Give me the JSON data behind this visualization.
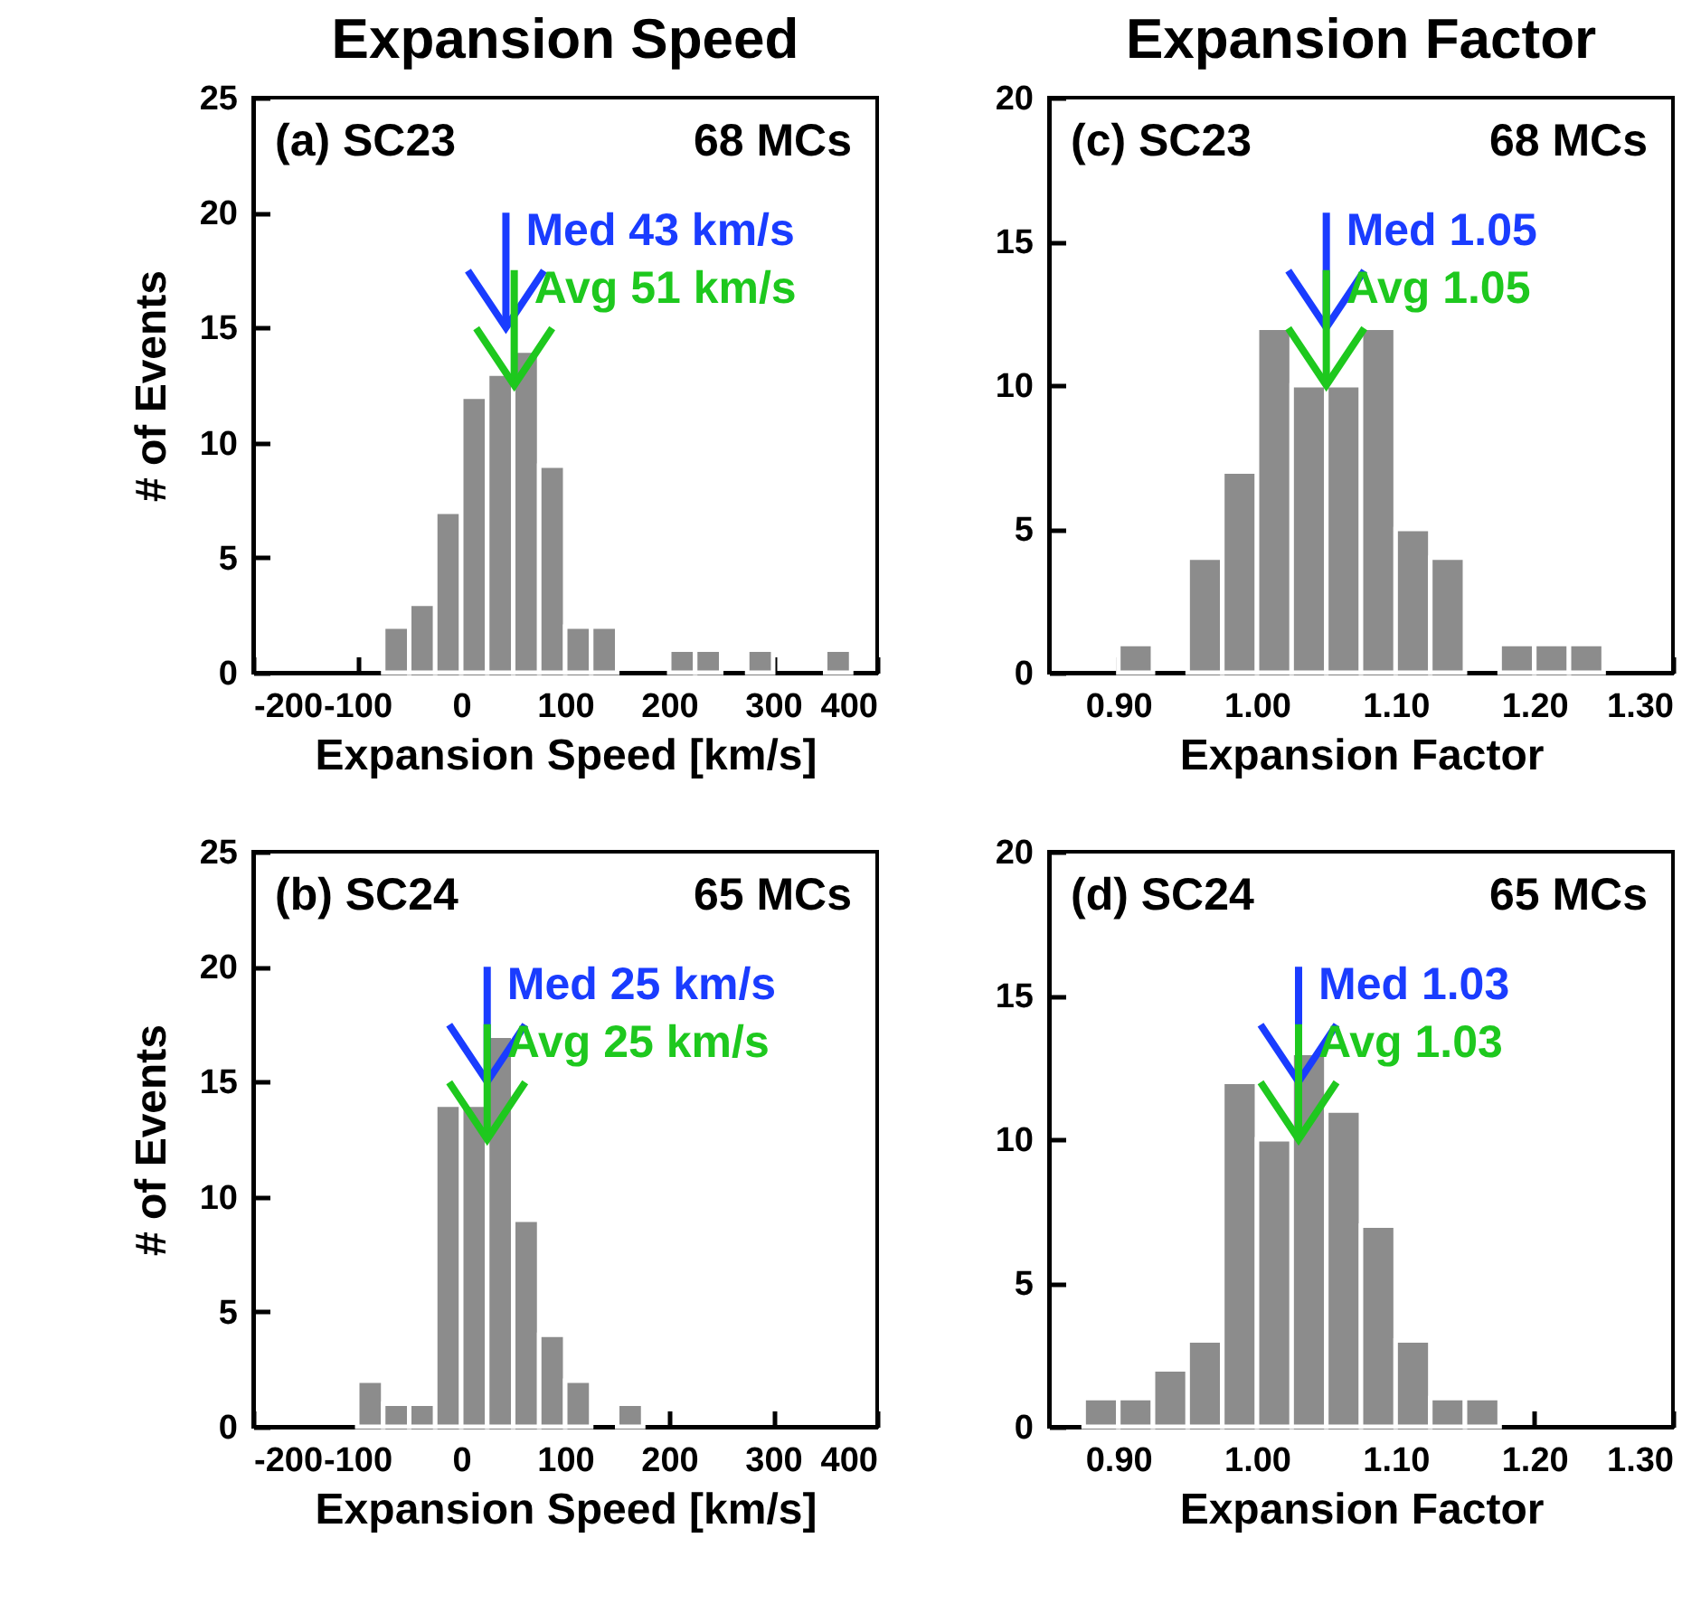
{
  "chart_data": [
    {
      "type": "histogram",
      "title": "Expansion Speed",
      "xlabel": "Expansion Speed [km/s]",
      "ylabel": "# of Events",
      "color": "#8c8c8c",
      "bins": [
        -75,
        -50,
        -25,
        0,
        25,
        50,
        75,
        100,
        125,
        150,
        175,
        200,
        225,
        250,
        275,
        300,
        325,
        350,
        375
      ],
      "values": [
        2,
        3,
        7,
        12,
        13,
        14,
        9,
        2,
        2,
        0,
        0,
        1,
        1,
        0,
        1,
        0,
        0,
        1
      ],
      "xlim": [
        -200,
        400
      ],
      "xticks": [
        -200,
        -100,
        0,
        100,
        200,
        300,
        400
      ],
      "ylim": [
        0,
        25
      ],
      "yticks": [
        0,
        5,
        10,
        15,
        20,
        25
      ],
      "annotations": [
        "(a) SC23",
        "68 MCs"
      ],
      "ref_lines": [
        {
          "axis": "x",
          "value": 43,
          "label": "Med  43 km/s",
          "color": "#1a3cff"
        },
        {
          "axis": "x",
          "value": 51,
          "label": "Avg  51 km/s",
          "color": "#1ec81e"
        }
      ]
    },
    {
      "type": "histogram",
      "title": "Expansion Factor",
      "xlabel": "Expansion Factor",
      "color": "#8c8c8c",
      "bins": [
        0.9,
        0.925,
        0.95,
        0.975,
        1.0,
        1.025,
        1.05,
        1.075,
        1.1,
        1.125,
        1.15,
        1.175,
        1.2,
        1.225,
        1.25
      ],
      "values": [
        1,
        0,
        4,
        7,
        12,
        10,
        10,
        12,
        5,
        4,
        0,
        1,
        1,
        1
      ],
      "xlim": [
        0.85,
        1.3
      ],
      "xticks": [
        {
          "value": 0.9,
          "label": "0.90"
        },
        {
          "value": 1.0,
          "label": "1.00"
        },
        {
          "value": 1.1,
          "label": "1.10"
        },
        {
          "value": 1.2,
          "label": "1.20"
        },
        {
          "value": 1.3,
          "label": "1.30"
        }
      ],
      "ylim": [
        0,
        20
      ],
      "yticks": [
        0,
        5,
        10,
        15,
        20
      ],
      "annotations": [
        "(c) SC23",
        "68 MCs"
      ],
      "ref_lines": [
        {
          "axis": "x",
          "value": 1.05,
          "label": "Med 1.05",
          "color": "#1a3cff"
        },
        {
          "axis": "x",
          "value": 1.05,
          "label": "Avg 1.05",
          "color": "#1ec81e"
        }
      ]
    },
    {
      "type": "histogram",
      "xlabel": "Expansion Speed [km/s]",
      "ylabel": "# of Events",
      "color": "#8c8c8c",
      "bins": [
        -100,
        -75,
        -50,
        -25,
        0,
        25,
        50,
        75,
        100,
        125,
        150,
        175
      ],
      "values": [
        2,
        1,
        1,
        14,
        14,
        17,
        9,
        4,
        2,
        0,
        1
      ],
      "xlim": [
        -200,
        400
      ],
      "xticks": [
        -200,
        -100,
        0,
        100,
        200,
        300,
        400
      ],
      "ylim": [
        0,
        25
      ],
      "yticks": [
        0,
        5,
        10,
        15,
        20,
        25
      ],
      "annotations": [
        "(b) SC24",
        "65 MCs"
      ],
      "ref_lines": [
        {
          "axis": "x",
          "value": 25,
          "label": "Med  25 km/s",
          "color": "#1a3cff"
        },
        {
          "axis": "x",
          "value": 25,
          "label": "Avg  25 km/s",
          "color": "#1ec81e"
        }
      ]
    },
    {
      "type": "histogram",
      "xlabel": "Expansion Factor",
      "color": "#8c8c8c",
      "bins": [
        0.875,
        0.9,
        0.925,
        0.95,
        0.975,
        1.0,
        1.025,
        1.05,
        1.075,
        1.1,
        1.125,
        1.15,
        1.175
      ],
      "values": [
        1,
        1,
        2,
        3,
        12,
        10,
        13,
        11,
        7,
        3,
        1,
        1
      ],
      "xlim": [
        0.85,
        1.3
      ],
      "xticks": [
        {
          "value": 0.9,
          "label": "0.90"
        },
        {
          "value": 1.0,
          "label": "1.00"
        },
        {
          "value": 1.1,
          "label": "1.10"
        },
        {
          "value": 1.2,
          "label": "1.20"
        },
        {
          "value": 1.3,
          "label": "1.30"
        }
      ],
      "ylim": [
        0,
        20
      ],
      "yticks": [
        0,
        5,
        10,
        15,
        20
      ],
      "annotations": [
        "(d) SC24",
        "65 MCs"
      ],
      "ref_lines": [
        {
          "axis": "x",
          "value": 1.03,
          "label": "Med 1.03",
          "color": "#1a3cff"
        },
        {
          "axis": "x",
          "value": 1.03,
          "label": "Avg 1.03",
          "color": "#1ec81e"
        }
      ]
    }
  ]
}
